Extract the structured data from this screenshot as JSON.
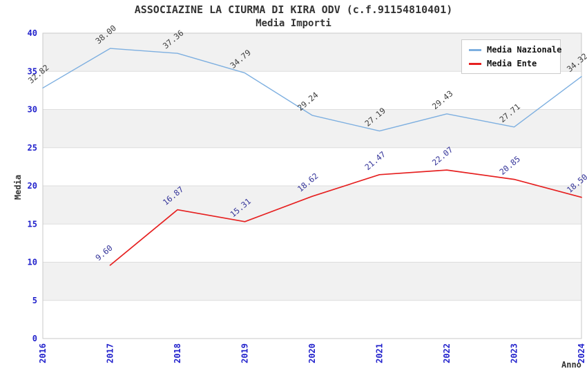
{
  "header": {
    "title": "ASSOCIAZINE LA CIURMA DI KIRA ODV (c.f.91154810401)",
    "subtitle": "Media Importi"
  },
  "legend": {
    "position": "top-right",
    "items": [
      {
        "label": "Media Nazionale",
        "color": "#7dafe0"
      },
      {
        "label": "Media Ente",
        "color": "#e62020"
      }
    ]
  },
  "axes": {
    "y_title": "Media",
    "x_title": "Anno",
    "y_ticks": [
      "0",
      "5",
      "10",
      "15",
      "20",
      "25",
      "30",
      "35",
      "40"
    ],
    "x_ticks": [
      "2016",
      "2017",
      "2018",
      "2019",
      "2020",
      "2021",
      "2022",
      "2023",
      "2024"
    ],
    "tick_color": "#2222cc"
  },
  "styles": {
    "title_color": "#333333",
    "plot_border_color": "#c9c9c9",
    "band_boundary_color": "#dddddd",
    "background": "#ffffff",
    "legend_text_color": "#111111"
  },
  "chart_data": {
    "type": "line",
    "title": "ASSOCIAZINE LA CIURMA DI KIRA ODV (c.f.91154810401)",
    "subtitle": "Media Importi",
    "xlabel": "Anno",
    "ylabel": "Media",
    "x": [
      2016,
      2017,
      2018,
      2019,
      2020,
      2021,
      2022,
      2023,
      2024
    ],
    "series": [
      {
        "name": "Media Nazionale",
        "color": "#7dafe0",
        "label_color": "#3d3d3d",
        "values": [
          32.82,
          38.0,
          37.36,
          34.79,
          29.24,
          27.19,
          29.43,
          27.71,
          34.32
        ]
      },
      {
        "name": "Media Ente",
        "color": "#e62020",
        "label_color": "#333399",
        "values": [
          null,
          9.6,
          16.87,
          15.31,
          18.62,
          21.47,
          22.07,
          20.85,
          18.5
        ]
      }
    ],
    "ylim": [
      0,
      40
    ],
    "y_tick_step": 5,
    "grid": "alternating horizontal bands",
    "band_intervals": [
      [
        5,
        10
      ],
      [
        15,
        20
      ],
      [
        25,
        30
      ],
      [
        35,
        40
      ]
    ],
    "band_color": "#f1f1f1",
    "legend_position": "top-right",
    "value_labels": "each point labeled with two decimals, rotated ~40deg"
  }
}
